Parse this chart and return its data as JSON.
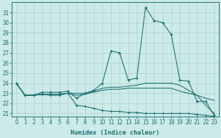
{
  "xlabel": "Humidex (Indice chaleur)",
  "bg_color": "#cceae8",
  "grid_color": "#aed4d1",
  "line_color": "#1a7070",
  "xlim": [
    -0.5,
    23.5
  ],
  "ylim": [
    20.7,
    32.0
  ],
  "xticks": [
    0,
    1,
    2,
    3,
    4,
    5,
    6,
    7,
    8,
    9,
    10,
    11,
    12,
    13,
    14,
    15,
    16,
    17,
    18,
    19,
    20,
    21,
    22,
    23
  ],
  "yticks": [
    21,
    22,
    23,
    24,
    25,
    26,
    27,
    28,
    29,
    30,
    31
  ],
  "line1_x": [
    0,
    1,
    2,
    3,
    4,
    5,
    6,
    7,
    8,
    9,
    10,
    11,
    12,
    13,
    14,
    15,
    16,
    17,
    18,
    19,
    20,
    21,
    22,
    23
  ],
  "line1_y": [
    24.0,
    22.8,
    22.8,
    23.1,
    23.1,
    23.1,
    23.2,
    22.5,
    23.0,
    23.3,
    24.0,
    27.2,
    27.0,
    24.3,
    24.5,
    31.5,
    30.2,
    30.0,
    28.8,
    24.3,
    24.2,
    22.2,
    22.2,
    20.8
  ],
  "line2_x": [
    0,
    1,
    2,
    3,
    4,
    5,
    6,
    7,
    8,
    9,
    10,
    11,
    12,
    13,
    14,
    15,
    16,
    17,
    18,
    19,
    20,
    21,
    22,
    23
  ],
  "line2_y": [
    24.0,
    22.8,
    22.8,
    22.9,
    22.9,
    22.9,
    23.0,
    22.8,
    22.9,
    23.1,
    23.3,
    23.4,
    23.4,
    23.5,
    23.5,
    23.5,
    23.5,
    23.5,
    23.5,
    23.2,
    23.0,
    22.8,
    22.5,
    22.3
  ],
  "line3_x": [
    0,
    1,
    2,
    3,
    4,
    5,
    6,
    7,
    8,
    9,
    10,
    11,
    12,
    13,
    14,
    15,
    16,
    17,
    18,
    19,
    20,
    21,
    22,
    23
  ],
  "line3_y": [
    24.0,
    22.8,
    22.8,
    22.9,
    22.9,
    22.9,
    23.0,
    23.0,
    23.0,
    23.2,
    23.5,
    23.6,
    23.6,
    23.7,
    23.8,
    24.0,
    24.0,
    24.0,
    24.0,
    23.8,
    23.3,
    22.8,
    21.8,
    21.0
  ],
  "line4_x": [
    0,
    1,
    2,
    3,
    4,
    5,
    6,
    7,
    8,
    9,
    10,
    11,
    12,
    13,
    14,
    15,
    16,
    17,
    18,
    19,
    20,
    21,
    22,
    23
  ],
  "line4_y": [
    24.0,
    22.8,
    22.8,
    22.9,
    22.8,
    22.8,
    23.0,
    21.8,
    21.7,
    21.5,
    21.3,
    21.2,
    21.2,
    21.1,
    21.1,
    21.0,
    21.0,
    21.0,
    21.0,
    21.0,
    21.0,
    20.9,
    20.8,
    20.7
  ]
}
